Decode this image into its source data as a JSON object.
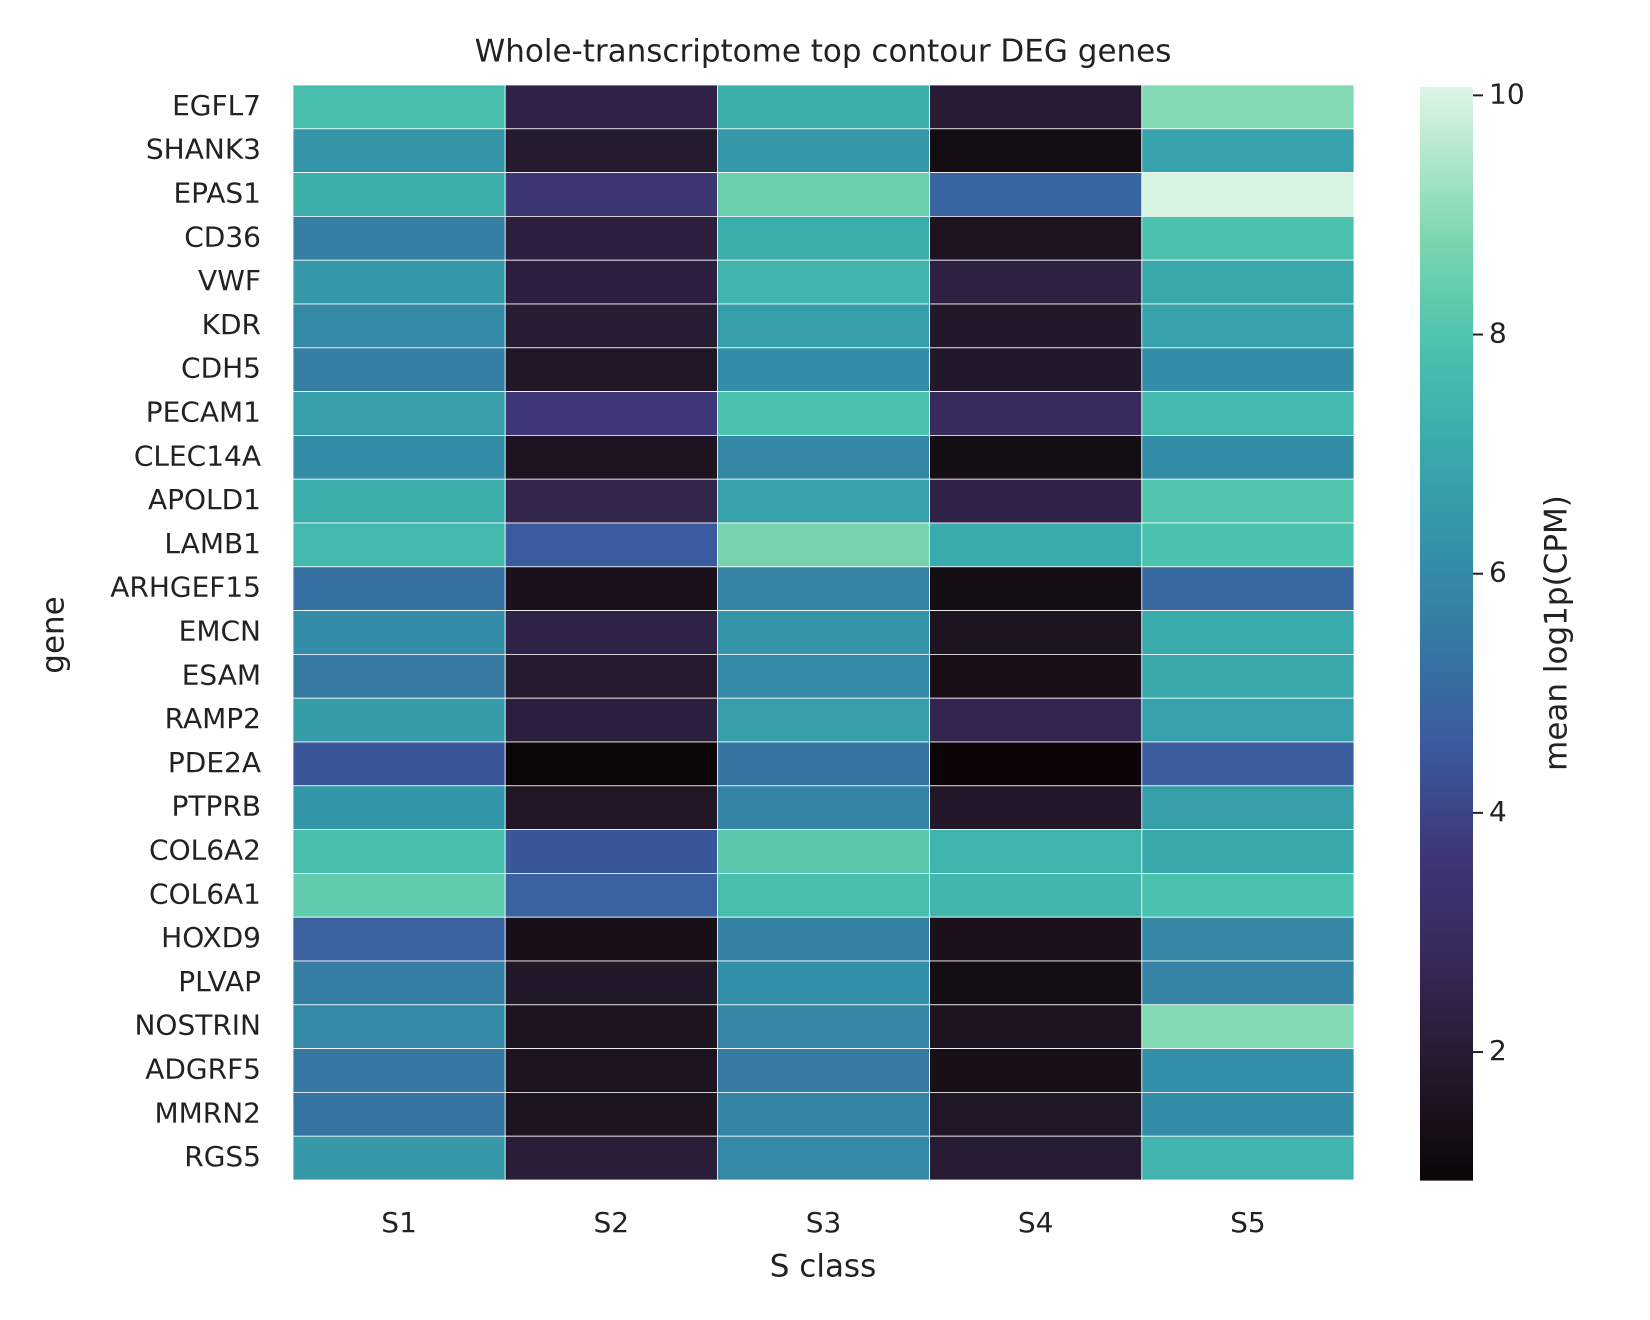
{
  "chart_data": {
    "type": "heatmap",
    "title": "Whole-transcriptome top contour DEG genes",
    "x_label": "S class",
    "y_label": "gene",
    "colorbar_label": "mean log1p(CPM)",
    "colormap": "mako",
    "x": [
      "S1",
      "S2",
      "S3",
      "S4",
      "S5"
    ],
    "y": [
      "EGFL7",
      "SHANK3",
      "EPAS1",
      "CD36",
      "VWF",
      "KDR",
      "CDH5",
      "PECAM1",
      "CLEC14A",
      "APOLD1",
      "LAMB1",
      "ARHGEF15",
      "EMCN",
      "ESAM",
      "RAMP2",
      "PDE2A",
      "PTPRB",
      "COL6A2",
      "COL6A1",
      "HOXD9",
      "PLVAP",
      "NOSTRIN",
      "ADGRF5",
      "MMRN2",
      "RGS5"
    ],
    "values": [
      [
        7.8,
        2.4,
        7.3,
        2.0,
        8.9
      ],
      [
        6.3,
        1.9,
        6.5,
        1.3,
        6.8
      ],
      [
        7.3,
        3.6,
        8.5,
        4.9,
        10.0
      ],
      [
        5.6,
        2.2,
        7.2,
        1.6,
        7.9
      ],
      [
        6.5,
        2.2,
        7.4,
        2.3,
        7.0
      ],
      [
        6.0,
        2.0,
        6.7,
        1.8,
        6.8
      ],
      [
        5.6,
        1.7,
        6.1,
        1.8,
        6.1
      ],
      [
        6.7,
        3.7,
        7.9,
        2.9,
        7.6
      ],
      [
        6.1,
        1.6,
        5.9,
        1.3,
        6.1
      ],
      [
        7.2,
        2.5,
        6.8,
        2.4,
        8.0
      ],
      [
        7.6,
        4.6,
        8.7,
        7.1,
        7.9
      ],
      [
        5.2,
        1.5,
        5.8,
        1.3,
        5.0
      ],
      [
        6.1,
        2.4,
        6.3,
        1.6,
        7.1
      ],
      [
        5.5,
        1.9,
        6.0,
        1.4,
        7.0
      ],
      [
        6.6,
        2.2,
        6.7,
        2.6,
        6.8
      ],
      [
        4.5,
        1.0,
        5.3,
        0.95,
        4.7
      ],
      [
        6.4,
        1.7,
        5.8,
        1.8,
        6.7
      ],
      [
        7.8,
        4.5,
        8.2,
        7.4,
        7.0
      ],
      [
        8.3,
        4.8,
        7.8,
        7.5,
        7.9
      ],
      [
        4.8,
        1.4,
        5.7,
        1.5,
        5.9
      ],
      [
        5.6,
        1.8,
        6.2,
        1.3,
        5.8
      ],
      [
        6.0,
        1.6,
        5.9,
        1.6,
        8.9
      ],
      [
        5.4,
        1.6,
        5.5,
        1.4,
        6.2
      ],
      [
        5.3,
        1.6,
        5.8,
        1.7,
        6.1
      ],
      [
        6.5,
        2.1,
        6.0,
        2.0,
        7.4
      ]
    ],
    "zlim": [
      0.93,
      10.07
    ],
    "zticks": [
      2,
      4,
      6,
      8,
      10
    ]
  }
}
